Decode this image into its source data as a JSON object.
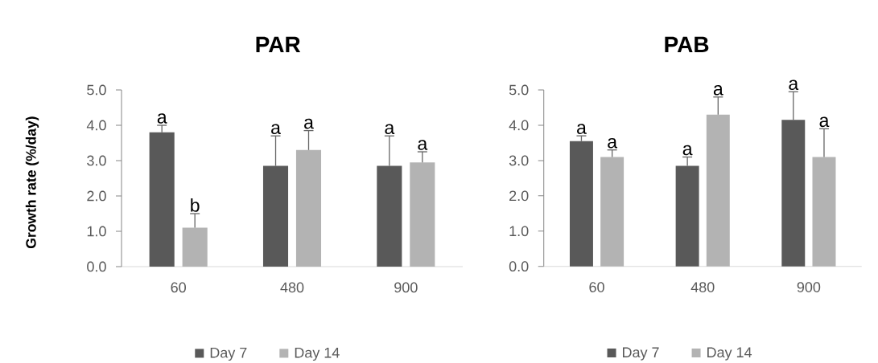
{
  "chart_data": [
    {
      "type": "bar",
      "title": "PAR",
      "ylabel": "Growth rate (%/day)",
      "categories": [
        "60",
        "480",
        "900"
      ],
      "series": [
        {
          "name": "Day 7",
          "color": "#595959",
          "values": [
            3.8,
            2.85,
            2.85
          ],
          "errors": [
            [
              3.8,
              4.0
            ],
            [
              2.85,
              3.7
            ],
            [
              2.85,
              3.7
            ]
          ]
        },
        {
          "name": "Day 14",
          "color": "#b3b3b3",
          "values": [
            1.1,
            3.3,
            2.95
          ],
          "errors": [
            [
              1.1,
              1.5
            ],
            [
              3.3,
              3.85
            ],
            [
              2.95,
              3.25
            ]
          ]
        }
      ],
      "ylim": [
        0,
        5
      ],
      "yticks": [
        {
          "value": 0,
          "label": "0.0"
        },
        {
          "value": 1,
          "label": "1.0"
        },
        {
          "value": 2,
          "label": "2.0"
        },
        {
          "value": 3,
          "label": "3.0"
        },
        {
          "value": 4,
          "label": "4.0"
        },
        {
          "value": 5,
          "label": "5.0"
        }
      ],
      "legend": "bottom",
      "annotations": [
        "a",
        "b",
        "a",
        "a",
        "a",
        "a"
      ]
    },
    {
      "type": "bar",
      "title": "PAB",
      "categories": [
        "60",
        "480",
        "900"
      ],
      "series": [
        {
          "name": "Day 7",
          "color": "#595959",
          "values": [
            3.55,
            2.85,
            4.15
          ],
          "errors": [
            [
              3.55,
              3.7
            ],
            [
              2.85,
              3.1
            ],
            [
              4.15,
              4.95
            ]
          ]
        },
        {
          "name": "Day 14",
          "color": "#b3b3b3",
          "values": [
            3.1,
            4.3,
            3.1
          ],
          "errors": [
            [
              3.1,
              3.3
            ],
            [
              4.3,
              4.8
            ],
            [
              3.1,
              3.9
            ]
          ]
        }
      ],
      "ylim": [
        0,
        5
      ],
      "yticks": [
        {
          "value": 0,
          "label": "0.0"
        },
        {
          "value": 1,
          "label": "1.0"
        },
        {
          "value": 2,
          "label": "2.0"
        },
        {
          "value": 3,
          "label": "3.0"
        },
        {
          "value": 4,
          "label": "4.0"
        },
        {
          "value": 5,
          "label": "5.0"
        }
      ],
      "legend": "bottom",
      "annotations": [
        "a",
        "a",
        "a",
        "a",
        "a",
        "a"
      ]
    }
  ]
}
